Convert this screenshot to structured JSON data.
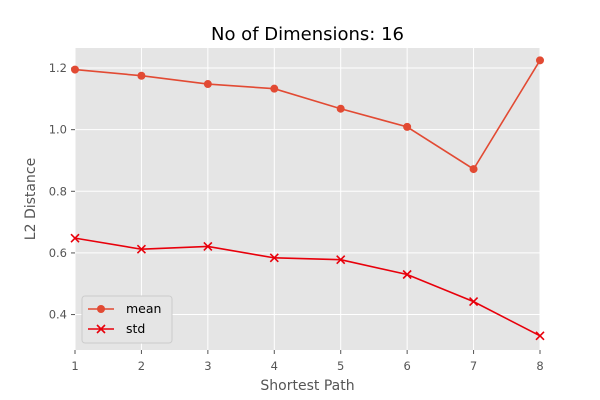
{
  "chart_data": {
    "type": "line",
    "title": "No of Dimensions: 16",
    "xlabel": "Shortest Path",
    "ylabel": "L2 Distance",
    "x": [
      1,
      2,
      3,
      4,
      5,
      6,
      7,
      8
    ],
    "xlim": [
      1,
      8
    ],
    "ylim": [
      0.285,
      1.265
    ],
    "xticks": [
      "1",
      "2",
      "3",
      "4",
      "5",
      "6",
      "7",
      "8"
    ],
    "yticks": [
      "0.4",
      "0.6",
      "0.8",
      "1.0",
      "1.2"
    ],
    "grid": true,
    "legend_position": "lower-left",
    "series": [
      {
        "name": "mean",
        "values": [
          1.195,
          1.175,
          1.148,
          1.133,
          1.068,
          1.009,
          0.872,
          1.225
        ],
        "marker": "circle",
        "color": "#E24A33"
      },
      {
        "name": "std",
        "values": [
          0.648,
          0.612,
          0.621,
          0.584,
          0.578,
          0.53,
          0.442,
          0.331
        ],
        "marker": "x",
        "color": "#E8000B"
      }
    ]
  },
  "colors": {
    "plot_background": "#E5E5E5",
    "grid": "#FFFFFF",
    "tick_text": "#555555"
  }
}
